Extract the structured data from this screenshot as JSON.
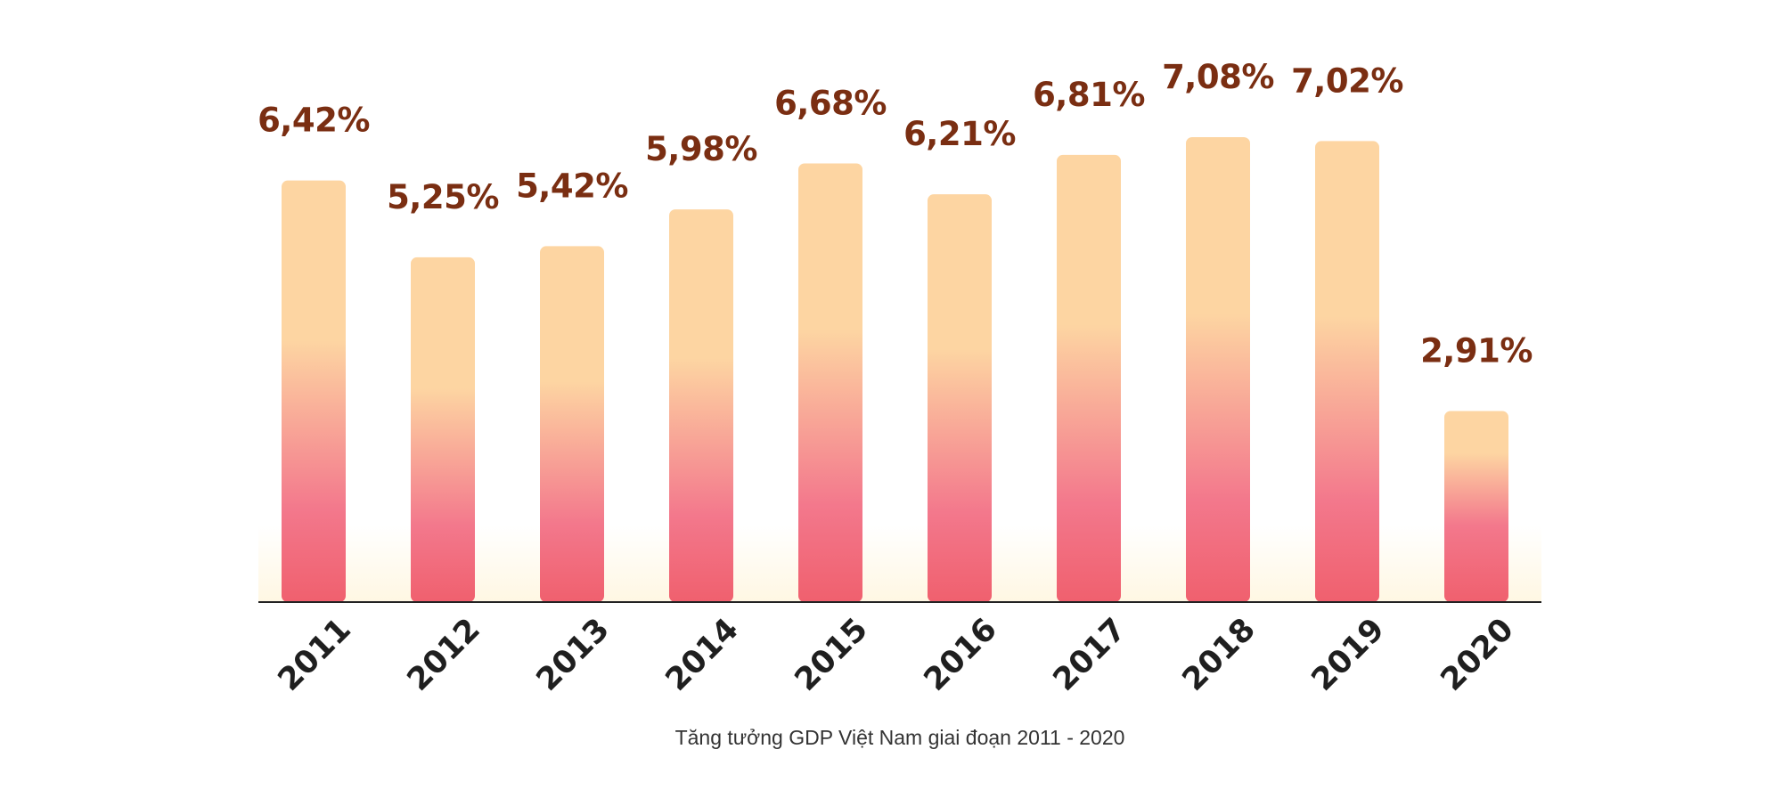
{
  "chart_data": {
    "type": "bar",
    "categories": [
      "2011",
      "2012",
      "2013",
      "2014",
      "2015",
      "2016",
      "2017",
      "2018",
      "2019",
      "2020"
    ],
    "values": [
      6.42,
      5.25,
      5.42,
      5.98,
      6.68,
      6.21,
      6.81,
      7.08,
      7.02,
      2.91
    ],
    "value_labels": [
      "6,42%",
      "5,25%",
      "5,42%",
      "5,98%",
      "6,68%",
      "6,21%",
      "6,81%",
      "7,08%",
      "7,02%",
      "2,91%"
    ],
    "title": "",
    "caption": "Tăng tưởng GDP Việt Nam giai đoạn 2011 - 2020",
    "xlabel": "",
    "ylabel": "",
    "ylim": [
      0,
      8
    ],
    "grid": false,
    "legend": "none",
    "colors": {
      "bar_top": "#FDD5A2",
      "bar_mid": "#F3788C",
      "bar_bottom": "#F0606E",
      "value_label": "#7A2E12",
      "axis": "#222222",
      "baseline_glow": "#FFF7E3"
    }
  }
}
